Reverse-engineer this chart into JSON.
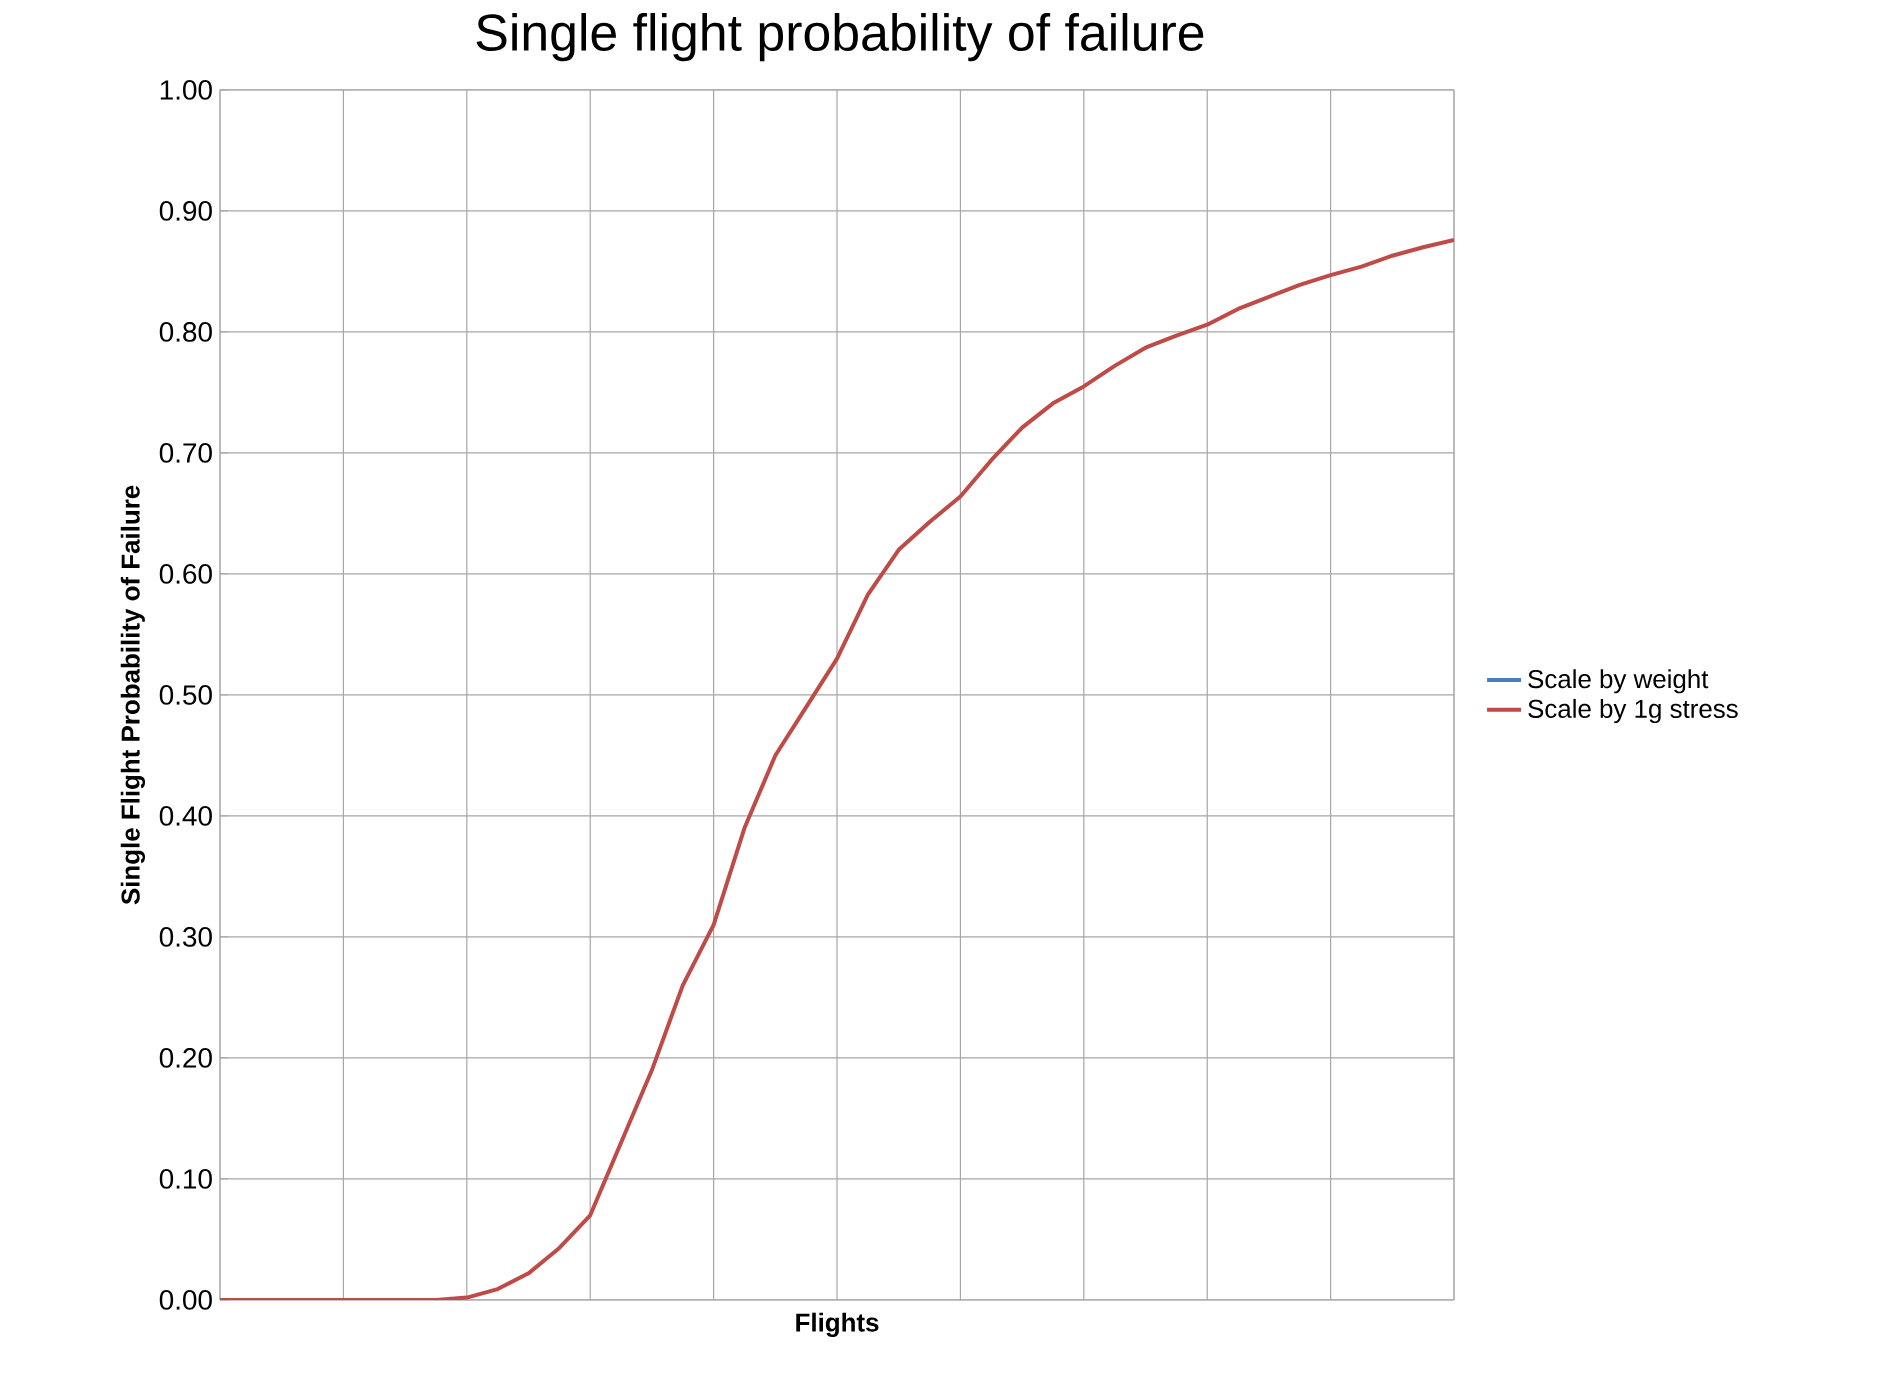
{
  "chart_data": {
    "type": "line",
    "title": "Single flight probability of failure",
    "xlabel": "Flights",
    "ylabel": "Single Flight Probability of Failure",
    "categories": [
      null,
      null,
      null,
      null,
      null,
      null,
      null,
      null,
      null,
      null,
      null,
      null,
      null,
      null,
      null,
      null,
      null,
      null,
      null,
      null,
      null,
      null,
      null,
      null,
      null,
      null,
      null,
      null,
      null,
      null,
      null,
      null,
      null,
      null,
      null,
      null,
      null,
      null,
      null,
      null,
      null
    ],
    "series": [
      {
        "name": "Scale by weight",
        "color": "#4a7ebb",
        "values": [
          null,
          null,
          null,
          null,
          null,
          null,
          null,
          null,
          null,
          null,
          null,
          null,
          null,
          null,
          null,
          null,
          null,
          null,
          null,
          null,
          null,
          null,
          null,
          null,
          null,
          null,
          null,
          null,
          null,
          null,
          null,
          null,
          null,
          null,
          null,
          null,
          null,
          null,
          null,
          null,
          null
        ]
      },
      {
        "name": "Scale by 1g stress",
        "color": "#be4b48",
        "values": [
          0,
          0,
          0,
          0,
          0,
          0,
          0,
          0,
          0.002,
          0.009,
          0.022,
          0.043,
          0.07,
          0.13,
          0.19,
          0.26,
          0.31,
          0.39,
          0.45,
          0.49,
          0.53,
          0.583,
          0.62,
          0.643,
          0.664,
          0.694,
          0.721,
          0.741,
          0.755,
          0.772,
          0.787,
          0.797,
          0.806,
          0.819,
          0.829,
          0.839,
          0.847,
          0.854,
          0.863,
          0.87,
          0.876
        ]
      }
    ],
    "ylim": [
      0,
      1
    ],
    "yticks": [
      {
        "value": 0,
        "label": "0.00"
      },
      {
        "value": 0.1,
        "label": "0.10"
      },
      {
        "value": 0.2,
        "label": "0.20"
      },
      {
        "value": 0.3,
        "label": "0.30"
      },
      {
        "value": 0.4,
        "label": "0.40"
      },
      {
        "value": 0.5,
        "label": "0.50"
      },
      {
        "value": 0.6,
        "label": "0.60"
      },
      {
        "value": 0.7,
        "label": "0.70"
      },
      {
        "value": 0.8,
        "label": "0.80"
      },
      {
        "value": 0.9,
        "label": "0.90"
      },
      {
        "value": 1,
        "label": "1.00"
      }
    ],
    "grid": true,
    "legend": "right",
    "line_style": "solid",
    "marker": "none"
  }
}
